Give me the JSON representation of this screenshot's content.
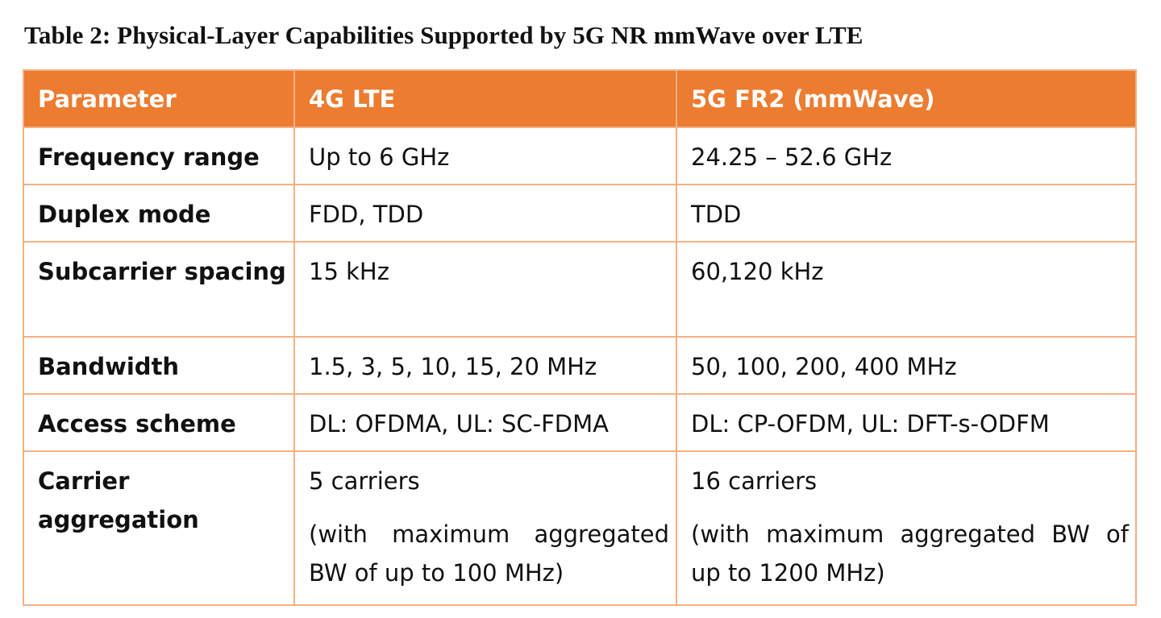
{
  "caption": "Table 2: Physical-Layer Capabilities Supported by 5G NR mmWave over LTE",
  "table": {
    "headers": [
      "Parameter",
      "4G LTE",
      "5G FR2 (mmWave)"
    ],
    "rows": [
      {
        "param": "Frequency range",
        "lte": "Up to 6 GHz",
        "nr": "24.25 – 52.6 GHz"
      },
      {
        "param": "Duplex mode",
        "lte": "FDD, TDD",
        "nr": "TDD"
      },
      {
        "param": "Subcarrier spacing",
        "lte": "15 kHz",
        "nr": "60,120 kHz"
      },
      {
        "param": "Bandwidth",
        "lte": "1.5, 3, 5, 10, 15, 20 MHz",
        "nr": "50, 100, 200, 400 MHz"
      },
      {
        "param": "Access scheme",
        "lte": "DL: OFDMA, UL: SC-FDMA",
        "nr": "DL: CP-OFDM, UL: DFT-s-ODFM"
      },
      {
        "param": "Carrier aggregation",
        "lte": "5 carriers",
        "lte_note": "(with maximum aggregated BW of up to 100 MHz)",
        "nr": "16 carriers",
        "nr_note": "(with maximum aggregated BW of up to 1200 MHz)"
      }
    ]
  },
  "colors": {
    "header_bg": "#ec7c30",
    "border": "#f4b184"
  }
}
